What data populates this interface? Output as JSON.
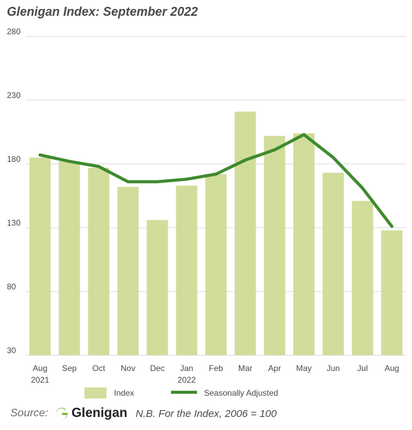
{
  "title": "Glenigan Index: September 2022",
  "colors": {
    "bar": "#d1dd9a",
    "line": "#3f8a2e",
    "grid": "#d9d9d9",
    "logo": "#7ab32e"
  },
  "chart_data": {
    "type": "bar",
    "categories": [
      "Aug",
      "Sep",
      "Oct",
      "Nov",
      "Dec",
      "Jan",
      "Feb",
      "Mar",
      "Apr",
      "May",
      "Jun",
      "Jul",
      "Aug"
    ],
    "category_sublabels": [
      "2021",
      "",
      "",
      "",
      "",
      "2022",
      "",
      "",
      "",
      "",
      "",
      "",
      ""
    ],
    "series": [
      {
        "name": "Index",
        "type": "bar",
        "values": [
          185,
          182,
          177,
          162,
          136,
          163,
          172,
          221,
          202,
          204,
          173,
          151,
          128
        ]
      },
      {
        "name": "Seasonally Adjusted",
        "type": "line",
        "values": [
          187,
          182,
          178,
          166,
          166,
          168,
          172,
          183,
          191,
          203,
          185,
          161,
          131
        ]
      }
    ],
    "ylim": [
      30,
      280
    ],
    "yticks": [
      30,
      80,
      130,
      180,
      230,
      280
    ],
    "grid": true,
    "legend": "bottom"
  },
  "footer": {
    "source_label": "Source:",
    "logo_text": "Glenigan",
    "note": "N.B. For the Index, 2006 = 100"
  }
}
